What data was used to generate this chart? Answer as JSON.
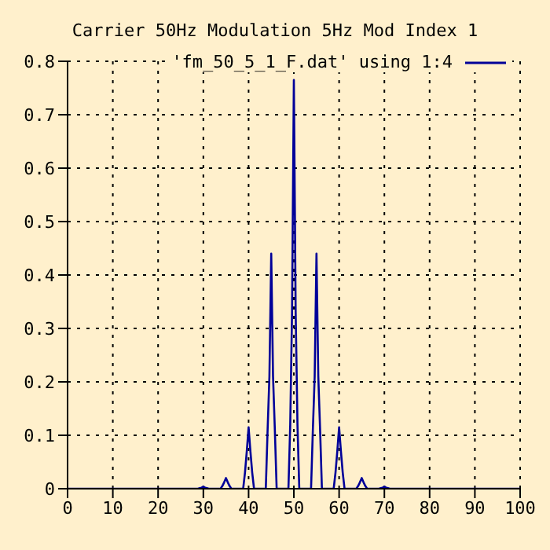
{
  "chart_data": {
    "type": "line",
    "title": "Carrier 50Hz Modulation 5Hz Mod Index 1",
    "x": [
      0,
      28.8,
      29.2,
      29.6,
      30,
      30.4,
      30.8,
      31.2,
      33.8,
      34.2,
      34.6,
      35,
      35.4,
      35.8,
      36.2,
      38.8,
      39.2,
      39.6,
      40,
      40.4,
      40.8,
      41.2,
      43.8,
      44.2,
      44.6,
      45,
      45.4,
      45.8,
      46.2,
      48.8,
      49.2,
      49.6,
      50,
      50.4,
      50.8,
      51.2,
      53.8,
      54.2,
      54.6,
      55,
      55.4,
      55.8,
      56.2,
      58.8,
      59.2,
      59.6,
      60,
      60.4,
      60.8,
      61.2,
      63.8,
      64.2,
      64.6,
      65,
      65.4,
      65.8,
      66.2,
      68.8,
      69.2,
      69.6,
      70,
      70.4,
      70.8,
      71.2,
      100
    ],
    "series": [
      {
        "name": "'fm_50_5_1_F.dat' using 1:4",
        "color": "#000099",
        "values": [
          0,
          0,
          0.001,
          0.002,
          0.004,
          0.002,
          0.001,
          0,
          0,
          0.005,
          0.012,
          0.02,
          0.012,
          0.005,
          0,
          0,
          0.03,
          0.07,
          0.115,
          0.07,
          0.03,
          0,
          0,
          0.11,
          0.21,
          0.44,
          0.21,
          0.11,
          0,
          0,
          0.12,
          0.33,
          0.765,
          0.33,
          0.12,
          0,
          0,
          0.11,
          0.21,
          0.44,
          0.21,
          0.11,
          0,
          0,
          0.03,
          0.07,
          0.115,
          0.07,
          0.03,
          0,
          0,
          0.005,
          0.012,
          0.02,
          0.012,
          0.005,
          0,
          0,
          0.001,
          0.002,
          0.004,
          0.002,
          0.001,
          0,
          0
        ]
      }
    ],
    "xlim": [
      0,
      100
    ],
    "xticks": [
      0,
      10,
      20,
      30,
      40,
      50,
      60,
      70,
      80,
      90,
      100
    ],
    "ylim": [
      0,
      0.8
    ],
    "yticks": [
      0,
      0.1,
      0.2,
      0.3,
      0.4,
      0.5,
      0.6,
      0.7,
      0.8
    ],
    "grid": true,
    "legend": "top right",
    "marker": "none",
    "line_style": "solid"
  }
}
